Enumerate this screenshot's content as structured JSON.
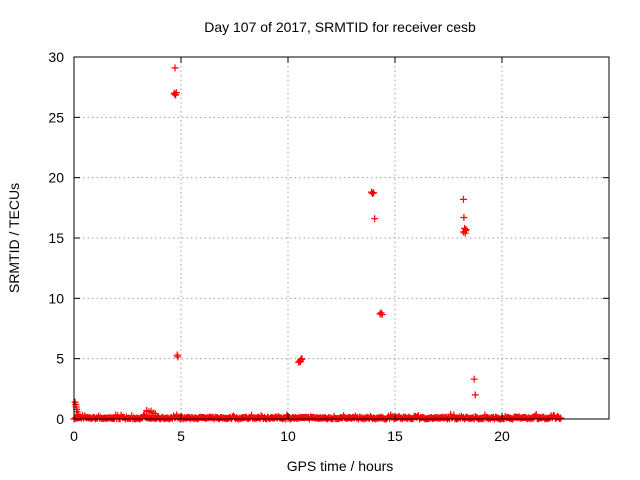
{
  "chart_data": {
    "type": "scatter",
    "title": "Day 107 of 2017, SRMTID for receiver cesb",
    "xlabel": "GPS time / hours",
    "ylabel": "SRMTID / TECUs",
    "xlim": [
      0,
      25
    ],
    "ylim": [
      0,
      30
    ],
    "xticks": [
      0,
      5,
      10,
      15,
      20
    ],
    "yticks": [
      0,
      5,
      10,
      15,
      20,
      25,
      30
    ],
    "grid": true,
    "marker": "plus",
    "color": "#ff0000",
    "series": [
      {
        "values_description_note": "",
        "points": [
          [
            0.05,
            1.4
          ],
          [
            0.08,
            1.2
          ],
          [
            0.1,
            1.0
          ],
          [
            0.12,
            0.8
          ],
          [
            0.15,
            0.6
          ],
          [
            0.2,
            0.4
          ],
          [
            4.72,
            29.1
          ],
          [
            4.68,
            27.0
          ],
          [
            4.72,
            26.9
          ],
          [
            4.75,
            26.85
          ],
          [
            4.78,
            27.05
          ],
          [
            4.82,
            5.3
          ],
          [
            4.85,
            5.15
          ],
          [
            10.5,
            4.7
          ],
          [
            10.55,
            4.8
          ],
          [
            10.6,
            4.9
          ],
          [
            10.65,
            5.0
          ],
          [
            10.58,
            4.75
          ],
          [
            10.62,
            4.95
          ],
          [
            13.9,
            18.8
          ],
          [
            13.95,
            18.7
          ],
          [
            14.0,
            18.75
          ],
          [
            14.05,
            16.6
          ],
          [
            14.3,
            8.7
          ],
          [
            14.35,
            8.8
          ],
          [
            14.4,
            8.65
          ],
          [
            18.2,
            18.2
          ],
          [
            18.22,
            16.7
          ],
          [
            18.25,
            15.8
          ],
          [
            18.3,
            15.6
          ],
          [
            18.28,
            15.4
          ],
          [
            18.32,
            15.7
          ],
          [
            18.2,
            15.5
          ],
          [
            18.7,
            3.3
          ],
          [
            18.75,
            2.0
          ],
          [
            3.4,
            0.7
          ],
          [
            3.5,
            0.6
          ],
          [
            3.6,
            0.65
          ],
          [
            3.7,
            0.5
          ],
          [
            3.8,
            0.45
          ]
        ]
      }
    ],
    "baseline": {
      "x_range": [
        0,
        22.8
      ],
      "y_typical": 0.1,
      "y_max": 0.35
    }
  }
}
